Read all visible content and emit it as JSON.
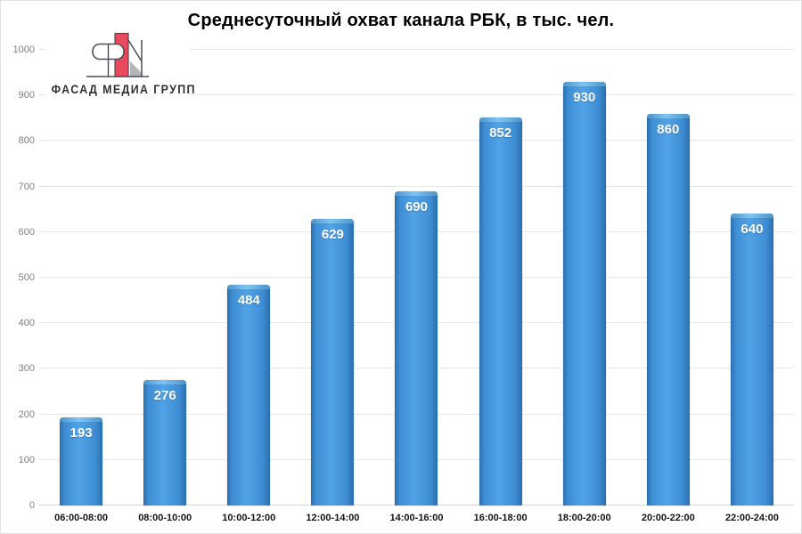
{
  "logo": {
    "text": "ФАСАД МЕДИА ГРУПП",
    "colors": {
      "red": "#e8495c",
      "outline": "#4d4d55",
      "gray": "#b4b4b9",
      "text": "#303036"
    }
  },
  "chart_data": {
    "type": "bar",
    "title": "Среднесуточный охват канала РБК, в тыс. чел.",
    "categories": [
      "06:00-08:00",
      "08:00-10:00",
      "10:00-12:00",
      "12:00-14:00",
      "14:00-16:00",
      "16:00-18:00",
      "18:00-20:00",
      "20:00-22:00",
      "22:00-24:00"
    ],
    "values": [
      193,
      276,
      484,
      629,
      690,
      852,
      930,
      860,
      640
    ],
    "xlabel": "",
    "ylabel": "",
    "ylim": [
      0,
      1000
    ],
    "ytick_step": 100,
    "grid": true,
    "legend": "none",
    "colors": {
      "bar_mid": "#52a2e6",
      "bar_edge": "#2b6fae",
      "bar_bevel": "#7fc5f2",
      "value_label": "#ffffff",
      "gridline": "#e7e7e7",
      "axis_line": "#d5d5d5",
      "y_tick_text": "#7f7f7f",
      "x_tick_text": "#141414",
      "title_text": "#000000"
    }
  }
}
